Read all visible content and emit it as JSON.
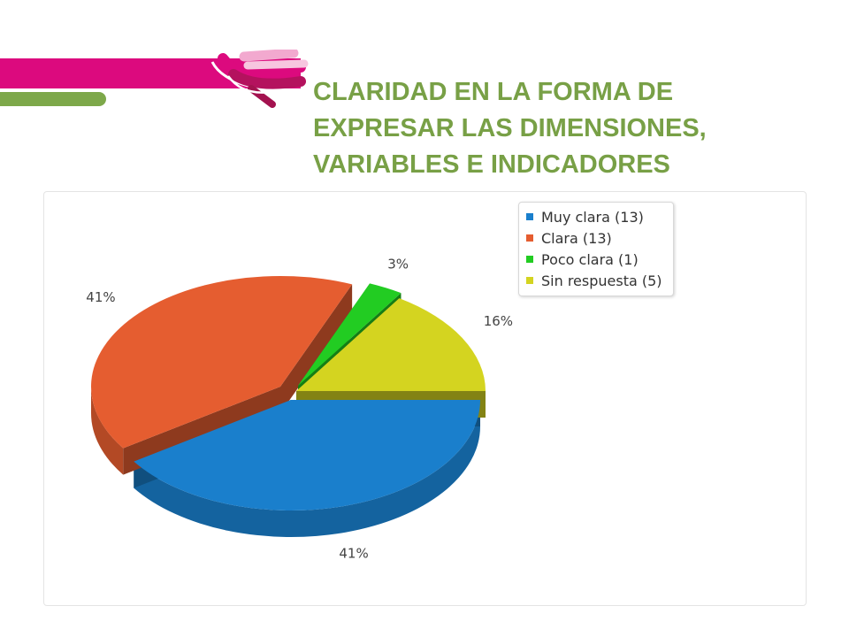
{
  "title": {
    "lines": [
      "CLARIDAD EN LA FORMA DE",
      "EXPRESAR  LAS DIMENSIONES,",
      "VARIABLES  E INDICADORES"
    ]
  },
  "brand": {
    "magenta": "#dc0a7e",
    "green": "#7da84a",
    "title_color": "#78a046"
  },
  "chart_data": {
    "type": "pie",
    "title": "",
    "series": [
      {
        "name": "Muy clara (13)",
        "count": 13,
        "value": 41,
        "label": "41%",
        "color": "#1a7fcc"
      },
      {
        "name": "Clara (13)",
        "count": 13,
        "value": 41,
        "label": "41%",
        "color": "#e55d30"
      },
      {
        "name": "Poco clara (1)",
        "count": 1,
        "value": 3,
        "label": "3%",
        "color": "#22cc22"
      },
      {
        "name": "Sin respuesta (5)",
        "count": 5,
        "value": 16,
        "label": "16%",
        "color": "#d4d420"
      }
    ],
    "legend": "top-right",
    "three_d": true,
    "exploded": true
  }
}
